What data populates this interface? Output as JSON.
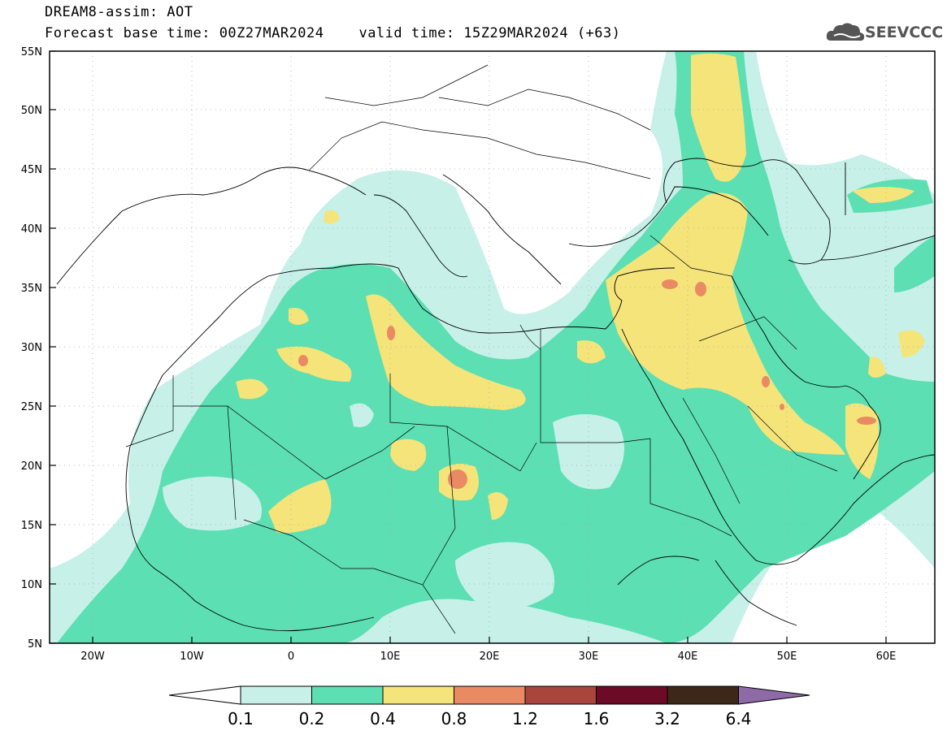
{
  "title": {
    "line1": "DREAM8-assim: AOT",
    "line2": "Forecast base time: 00Z27MAR2024    valid time: 15Z29MAR2024 (+63)"
  },
  "logo": {
    "text": "SEEVCCC"
  },
  "axes": {
    "lat_labels": [
      "55N",
      "50N",
      "45N",
      "40N",
      "35N",
      "30N",
      "25N",
      "20N",
      "15N",
      "10N",
      "5N"
    ],
    "lon_labels": [
      "20W",
      "10W",
      "0",
      "10E",
      "20E",
      "30E",
      "40E",
      "50E",
      "60E"
    ]
  },
  "colorbar": {
    "levels": [
      "0.1",
      "0.2",
      "0.4",
      "0.8",
      "1.2",
      "1.6",
      "3.2",
      "6.4"
    ],
    "colors": [
      "#ffffff",
      "#c6f0e8",
      "#5cdfb2",
      "#f5e47a",
      "#e98a63",
      "#a8453c",
      "#6d0a26",
      "#3d2718",
      "#8e6aa6"
    ]
  },
  "colors": {
    "level1": "#c6f0e8",
    "level2": "#5cdfb2",
    "level3": "#f5e47a",
    "level4": "#e98a63",
    "border": "#000000"
  }
}
